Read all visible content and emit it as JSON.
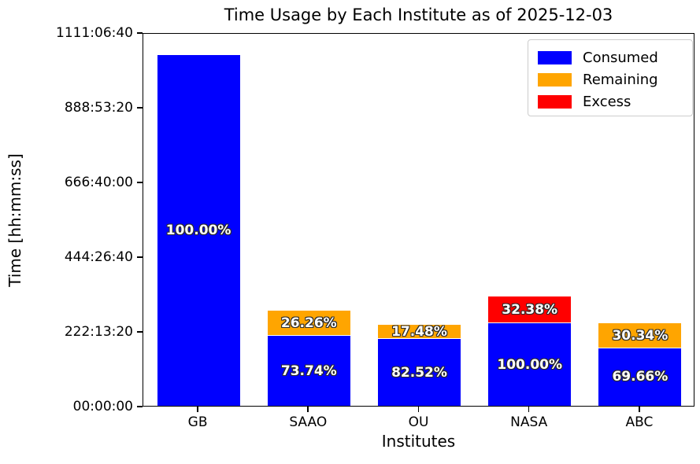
{
  "title": "Time Usage by Each Institute as of 2025-12-03",
  "xlabel": "Institutes",
  "ylabel": "Time [hh:mm:ss]",
  "colors": {
    "consumed": "#0000ff",
    "remaining": "#ffa500",
    "excess": "#ff0000",
    "axis": "#000000",
    "label_outline": "#2b2b2b",
    "label_text": "#ffffff"
  },
  "legend": {
    "items": [
      {
        "label": "Consumed",
        "color": "#0000ff"
      },
      {
        "label": "Remaining",
        "color": "#ffa500"
      },
      {
        "label": "Excess",
        "color": "#ff0000"
      }
    ]
  },
  "chart_data": {
    "type": "bar",
    "stacked": true,
    "title": "Time Usage by Each Institute as of 2025-12-03",
    "xlabel": "Institutes",
    "ylabel": "Time [hh:mm:ss]",
    "categories": [
      "GB",
      "SAAO",
      "OU",
      "NASA",
      "ABC"
    ],
    "ylim_hours": [
      0,
      1111.111
    ],
    "yticks": [
      {
        "hours": 0,
        "label": "00:00:00"
      },
      {
        "hours": 222.222,
        "label": "222:13:20"
      },
      {
        "hours": 444.444,
        "label": "444:26:40"
      },
      {
        "hours": 666.667,
        "label": "666:40:00"
      },
      {
        "hours": 888.889,
        "label": "888:53:20"
      },
      {
        "hours": 1111.111,
        "label": "1111:06:40"
      }
    ],
    "grid": false,
    "legend_position": "upper right",
    "series": [
      {
        "name": "Consumed",
        "color": "#0000ff",
        "values_hours": [
          1043.3,
          208.2,
          198.8,
          245.6,
          170.8
        ],
        "bar_labels": [
          "100.00%",
          "73.74%",
          "82.52%",
          "100.00%",
          "69.66%"
        ]
      },
      {
        "name": "Remaining",
        "color": "#ffa500",
        "values_hours": [
          0,
          74.1,
          42.1,
          0,
          74.4
        ],
        "bar_labels": [
          "",
          "26.26%",
          "17.48%",
          "",
          "30.34%"
        ]
      },
      {
        "name": "Excess",
        "color": "#ff0000",
        "values_hours": [
          0,
          0,
          0,
          79.5,
          0
        ],
        "bar_labels": [
          "",
          "",
          "",
          "32.38%",
          ""
        ]
      }
    ]
  }
}
